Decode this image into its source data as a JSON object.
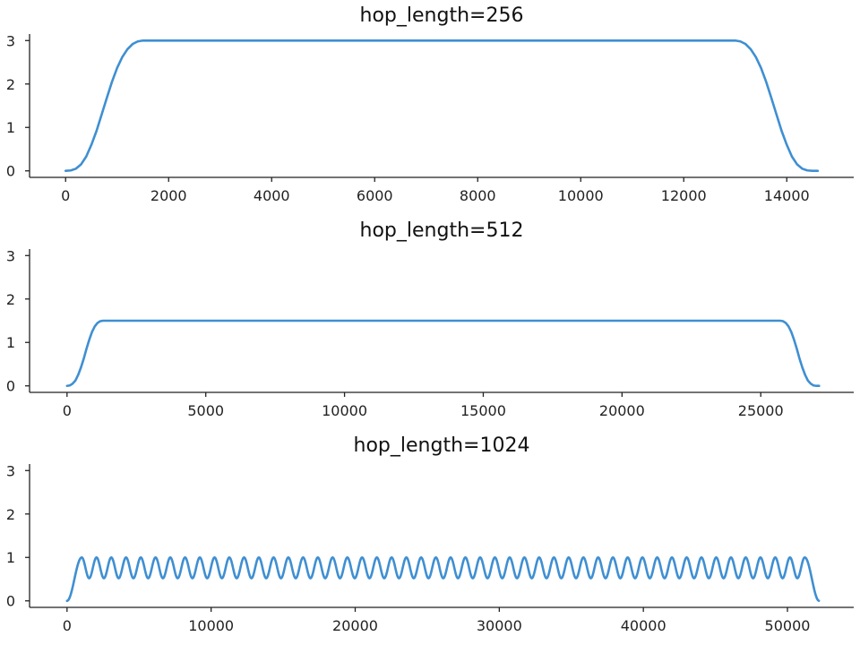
{
  "chart_data": [
    {
      "type": "line",
      "title": "hop_length=256",
      "hop_length": 256,
      "xlabel": "",
      "ylabel": "",
      "xlim": [
        -700,
        15300
      ],
      "ylim": [
        -0.15,
        3.15
      ],
      "xticks": [
        0,
        2000,
        4000,
        6000,
        8000,
        10000,
        12000,
        14000
      ],
      "xtick_labels": [
        "0",
        "2000",
        "4000",
        "6000",
        "8000",
        "10000",
        "12000",
        "14000"
      ],
      "yticks": [
        0,
        1,
        2,
        3
      ],
      "ytick_labels": [
        "0",
        "1",
        "2",
        "3"
      ],
      "grid": false,
      "series": [
        {
          "color": "#3f8fd2",
          "x": [
            0,
            100,
            200,
            300,
            400,
            500,
            600,
            700,
            800,
            900,
            1000,
            1100,
            1200,
            1300,
            1400,
            1500,
            1600,
            1700,
            2000,
            4000,
            6000,
            8000,
            10000,
            12000,
            12800,
            12900,
            13000,
            13100,
            13200,
            13300,
            13400,
            13500,
            13600,
            13700,
            13800,
            13900,
            14000,
            14100,
            14200,
            14300,
            14400,
            14500,
            14600
          ],
          "y": [
            0.0,
            0.01,
            0.05,
            0.15,
            0.33,
            0.6,
            0.92,
            1.3,
            1.68,
            2.05,
            2.37,
            2.62,
            2.8,
            2.92,
            2.98,
            3.0,
            3.0,
            3.0,
            3.0,
            3.0,
            3.0,
            3.0,
            3.0,
            3.0,
            3.0,
            3.0,
            3.0,
            2.98,
            2.92,
            2.8,
            2.62,
            2.37,
            2.05,
            1.68,
            1.3,
            0.92,
            0.6,
            0.33,
            0.15,
            0.05,
            0.01,
            0.0,
            0.0
          ]
        }
      ]
    },
    {
      "type": "line",
      "title": "hop_length=512",
      "hop_length": 512,
      "xlabel": "",
      "ylabel": "",
      "xlim": [
        -1350,
        28350
      ],
      "ylim": [
        -0.15,
        3.15
      ],
      "xticks": [
        0,
        5000,
        10000,
        15000,
        20000,
        25000
      ],
      "xtick_labels": [
        "0",
        "5000",
        "10000",
        "15000",
        "20000",
        "25000"
      ],
      "yticks": [
        0,
        1,
        2,
        3
      ],
      "ytick_labels": [
        "0",
        "1",
        "2",
        "3"
      ],
      "grid": false,
      "series": [
        {
          "color": "#3f8fd2",
          "x": [
            0,
            100,
            200,
            300,
            400,
            500,
            600,
            700,
            800,
            900,
            1000,
            1100,
            1200,
            1300,
            1400,
            2000,
            10000,
            20000,
            25500,
            25700,
            25800,
            25900,
            26000,
            26100,
            26200,
            26300,
            26400,
            26500,
            26600,
            26700,
            26800,
            26900,
            27000,
            27100
          ],
          "y": [
            0.0,
            0.01,
            0.05,
            0.12,
            0.25,
            0.42,
            0.62,
            0.85,
            1.06,
            1.24,
            1.37,
            1.45,
            1.49,
            1.5,
            1.5,
            1.5,
            1.5,
            1.5,
            1.5,
            1.5,
            1.49,
            1.45,
            1.37,
            1.24,
            1.06,
            0.85,
            0.62,
            0.42,
            0.25,
            0.12,
            0.05,
            0.01,
            0.0,
            0.0
          ]
        }
      ]
    },
    {
      "type": "line",
      "title": "hop_length=1024",
      "hop_length": 1024,
      "xlabel": "",
      "ylabel": "",
      "xlim": [
        -2600,
        54600
      ],
      "ylim": [
        -0.15,
        3.15
      ],
      "xticks": [
        0,
        10000,
        20000,
        30000,
        40000,
        50000
      ],
      "xtick_labels": [
        "0",
        "10000",
        "20000",
        "30000",
        "40000",
        "50000"
      ],
      "yticks": [
        0,
        1,
        2,
        3
      ],
      "ytick_labels": [
        "0",
        "1",
        "2",
        "3"
      ],
      "grid": false,
      "series": [
        {
          "color": "#3f8fd2",
          "x_start": 0,
          "x_end": 52200,
          "ramp_in_end": 1024,
          "ramp_out_start": 51200,
          "oscillation_period": 1024,
          "peak": 1.0,
          "trough": 0.52
        }
      ]
    }
  ]
}
